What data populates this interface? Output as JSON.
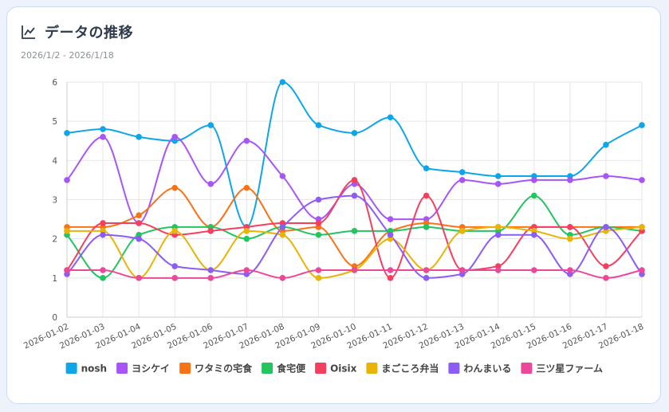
{
  "header": {
    "title": "データの推移",
    "date_range": "2026/1/2 - 2026/1/18"
  },
  "icons": {
    "title_icon": "line-chart-icon"
  },
  "chart_data": {
    "type": "line",
    "x": [
      "2026-01-02",
      "2026-01-03",
      "2026-01-04",
      "2026-01-05",
      "2026-01-06",
      "2026-01-07",
      "2026-01-08",
      "2026-01-09",
      "2026-01-10",
      "2026-01-11",
      "2026-01-12",
      "2026-01-13",
      "2026-01-14",
      "2026-01-15",
      "2026-01-16",
      "2026-01-17",
      "2026-01-18"
    ],
    "ylim": [
      0,
      6
    ],
    "yticks": [
      0,
      1,
      2,
      3,
      4,
      5,
      6
    ],
    "grid": true,
    "legend_position": "bottom",
    "series": [
      {
        "name": "nosh",
        "color": "#0ea5e9",
        "values": [
          4.7,
          4.8,
          4.6,
          4.5,
          4.9,
          2.3,
          6.0,
          4.9,
          4.7,
          5.1,
          3.8,
          3.7,
          3.6,
          3.6,
          3.6,
          4.4,
          4.9
        ]
      },
      {
        "name": "ヨシケイ",
        "color": "#a855f7",
        "values": [
          3.5,
          4.6,
          2.4,
          4.6,
          3.4,
          4.5,
          3.6,
          2.5,
          3.4,
          2.5,
          2.5,
          3.5,
          3.4,
          3.5,
          3.5,
          3.6,
          3.5
        ]
      },
      {
        "name": "ワタミの宅食",
        "color": "#f97316",
        "values": [
          2.3,
          2.3,
          2.6,
          3.3,
          2.3,
          3.3,
          2.2,
          2.3,
          1.3,
          2.2,
          2.4,
          2.3,
          2.3,
          2.3,
          2.3,
          2.3,
          2.3
        ]
      },
      {
        "name": "食宅便",
        "color": "#22c55e",
        "values": [
          2.1,
          1.0,
          2.1,
          2.3,
          2.3,
          2.0,
          2.3,
          2.1,
          2.2,
          2.2,
          2.3,
          2.2,
          2.2,
          3.1,
          2.1,
          2.3,
          2.2
        ]
      },
      {
        "name": "Oisix",
        "color": "#f43f5e",
        "values": [
          1.2,
          2.4,
          2.4,
          2.1,
          2.2,
          2.3,
          2.4,
          2.4,
          3.5,
          1.0,
          3.1,
          1.2,
          1.3,
          2.3,
          2.3,
          1.3,
          2.2
        ]
      },
      {
        "name": "まごころ弁当",
        "color": "#eab308",
        "values": [
          2.2,
          2.2,
          1.0,
          2.2,
          1.2,
          2.2,
          2.1,
          1.0,
          1.2,
          2.0,
          1.2,
          2.2,
          2.3,
          2.2,
          2.0,
          2.2,
          2.3
        ]
      },
      {
        "name": "わんまいる",
        "color": "#8b5cf6",
        "values": [
          1.1,
          2.1,
          2.0,
          1.3,
          1.2,
          1.1,
          2.3,
          3.0,
          3.1,
          2.1,
          1.0,
          1.1,
          2.1,
          2.1,
          1.1,
          2.3,
          1.1
        ]
      },
      {
        "name": "三ツ星ファーム",
        "color": "#ec4899",
        "values": [
          1.2,
          1.2,
          1.0,
          1.0,
          1.0,
          1.2,
          1.0,
          1.2,
          1.2,
          1.2,
          1.2,
          1.2,
          1.2,
          1.2,
          1.2,
          1.0,
          1.2
        ]
      }
    ]
  }
}
